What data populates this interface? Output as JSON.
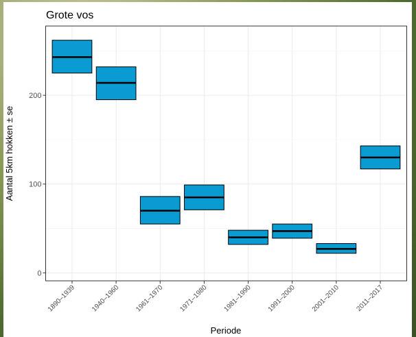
{
  "chart_data": {
    "type": "crossbar",
    "title": "Grote vos",
    "x_label": "Periode",
    "y_label": "Aantal 5km hokken ± se",
    "categories": [
      "1890–1939",
      "1940–1960",
      "1961–1970",
      "1971–1980",
      "1981–1990",
      "1991–2000",
      "2001–2010",
      "2011–2017"
    ],
    "series": [
      {
        "color": "#0a9bd3",
        "values": [
          243,
          214,
          70,
          85,
          40,
          47,
          27,
          130
        ],
        "lower": [
          225,
          195,
          55,
          71,
          32,
          39,
          22,
          117
        ],
        "upper": [
          262,
          232,
          86,
          99,
          48,
          55,
          33,
          143
        ]
      }
    ],
    "ylim": [
      -9,
      278
    ],
    "yticks": [
      0,
      100,
      200
    ],
    "yminor_ticks": [
      50,
      150,
      250
    ],
    "grid": true
  }
}
